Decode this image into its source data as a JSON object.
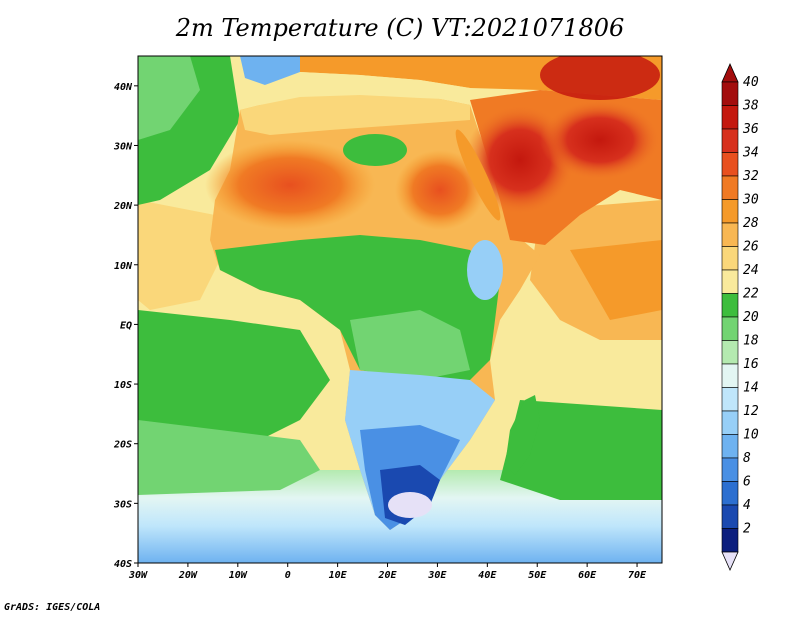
{
  "title": "2m Temperature (C) VT:2021071806",
  "credit": "GrADS: IGES/COLA",
  "map": {
    "lon_range": [
      -30,
      75
    ],
    "lat_range": [
      -40,
      45
    ],
    "x_ticks": [
      "30W",
      "20W",
      "10W",
      "0",
      "10E",
      "20E",
      "30E",
      "40E",
      "50E",
      "60E",
      "70E"
    ],
    "y_ticks": [
      "40N",
      "30N",
      "20N",
      "10N",
      "EQ",
      "10S",
      "20S",
      "30S",
      "40S"
    ],
    "ocean_color": "#fbe89a"
  },
  "colorbar": {
    "labels": [
      "40",
      "38",
      "36",
      "34",
      "32",
      "30",
      "28",
      "26",
      "24",
      "22",
      "20",
      "18",
      "16",
      "14",
      "12",
      "10",
      "8",
      "6",
      "4",
      "2"
    ],
    "colors": [
      "#a30d0d",
      "#c4180e",
      "#d7301d",
      "#e8501f",
      "#f07a24",
      "#f59a2a",
      "#f8b753",
      "#fad77a",
      "#f9ea9c",
      "#3dbd3d",
      "#72d472",
      "#b4eab0",
      "#e3f6f3",
      "#bfe6fb",
      "#97cff7",
      "#6eb2f0",
      "#4a90e4",
      "#2c6fd0",
      "#1a49b0",
      "#0c1f7e"
    ],
    "low_color": "#e6e1f7"
  }
}
